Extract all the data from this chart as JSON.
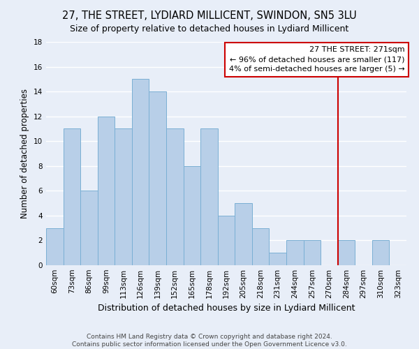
{
  "title": "27, THE STREET, LYDIARD MILLICENT, SWINDON, SN5 3LU",
  "subtitle": "Size of property relative to detached houses in Lydiard Millicent",
  "xlabel": "Distribution of detached houses by size in Lydiard Millicent",
  "ylabel": "Number of detached properties",
  "categories": [
    "60sqm",
    "73sqm",
    "86sqm",
    "99sqm",
    "113sqm",
    "126sqm",
    "139sqm",
    "152sqm",
    "165sqm",
    "178sqm",
    "192sqm",
    "205sqm",
    "218sqm",
    "231sqm",
    "244sqm",
    "257sqm",
    "270sqm",
    "284sqm",
    "297sqm",
    "310sqm",
    "323sqm"
  ],
  "values": [
    3,
    11,
    6,
    12,
    11,
    15,
    14,
    11,
    8,
    11,
    4,
    5,
    3,
    1,
    2,
    2,
    0,
    2,
    0,
    2,
    0
  ],
  "bar_color": "#b8cfe8",
  "bar_edge_color": "#7aafd4",
  "marker_color": "#cc0000",
  "smaller_pct": "96%",
  "smaller_n": 117,
  "larger_pct": "4%",
  "larger_n": 5,
  "annotation_box_color": "#cc0000",
  "ylim": [
    0,
    18
  ],
  "yticks": [
    0,
    2,
    4,
    6,
    8,
    10,
    12,
    14,
    16,
    18
  ],
  "background_color": "#e8eef8",
  "plot_bg_color": "#e8eef8",
  "grid_color": "#ffffff",
  "footnote": "Contains HM Land Registry data © Crown copyright and database right 2024.\nContains public sector information licensed under the Open Government Licence v3.0.",
  "title_fontsize": 10.5,
  "subtitle_fontsize": 9,
  "xlabel_fontsize": 9,
  "ylabel_fontsize": 8.5,
  "tick_fontsize": 7.5,
  "annotation_fontsize": 8,
  "footnote_fontsize": 6.5
}
